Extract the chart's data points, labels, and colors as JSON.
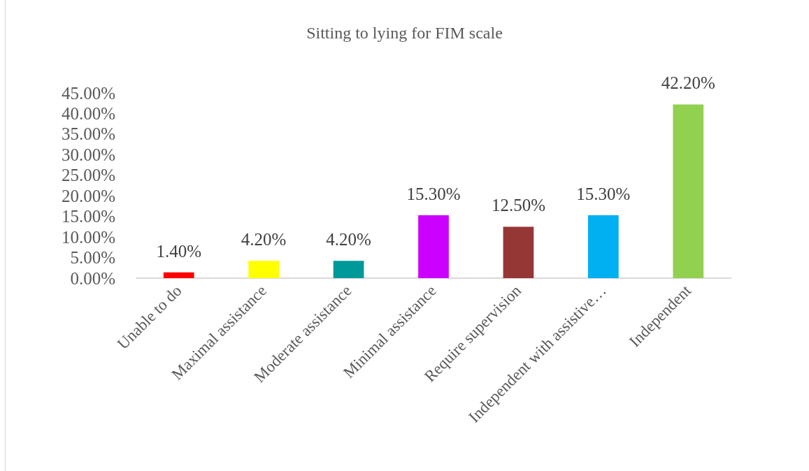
{
  "chart_data": {
    "type": "bar",
    "title": "Sitting to lying for FIM scale",
    "categories": [
      "Unable to do",
      "Maximal assistance",
      "Moderate assistance",
      "Minimal assistance",
      "Require supervision",
      "Independent with assistive…",
      "Independent"
    ],
    "values": [
      1.4,
      4.2,
      4.2,
      15.3,
      12.5,
      15.3,
      42.2
    ],
    "colors": [
      "#ff0000",
      "#ffff00",
      "#009999",
      "#cc00ff",
      "#953735",
      "#00b0f0",
      "#92d050"
    ],
    "value_labels": [
      "1.40%",
      "4.20%",
      "4.20%",
      "15.30%",
      "12.50%",
      "15.30%",
      "42.20%"
    ],
    "ylim": [
      0,
      45
    ],
    "yticks": [
      {
        "value": 0,
        "label": "0.00%"
      },
      {
        "value": 5,
        "label": "5.00%"
      },
      {
        "value": 10,
        "label": "10.00%"
      },
      {
        "value": 15,
        "label": "15.00%"
      },
      {
        "value": 20,
        "label": "20.00%"
      },
      {
        "value": 25,
        "label": "25.00%"
      },
      {
        "value": 30,
        "label": "30.00%"
      },
      {
        "value": 35,
        "label": "35.00%"
      },
      {
        "value": 40,
        "label": "40.00%"
      },
      {
        "value": 45,
        "label": "45.00%"
      }
    ],
    "grid": false
  }
}
